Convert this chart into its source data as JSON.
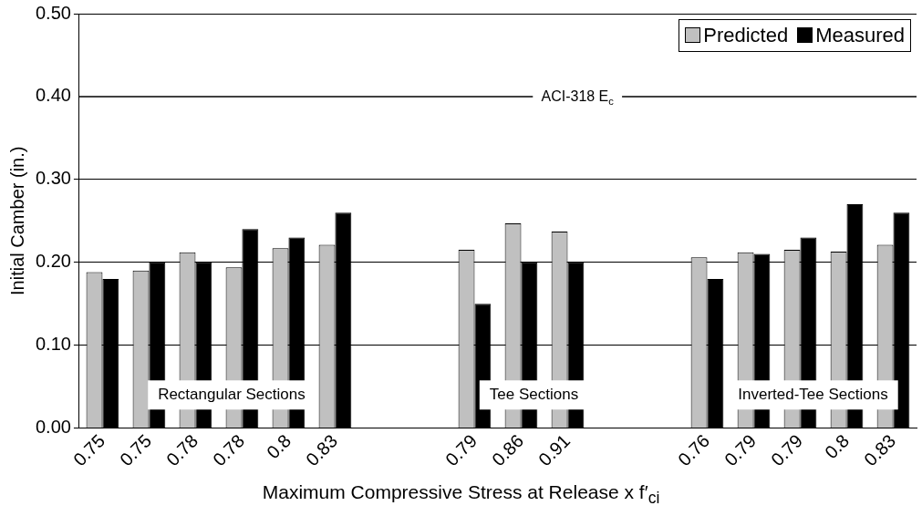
{
  "chart_data": {
    "type": "bar",
    "xlabel": "Maximum Compressive Stress at Release x f′$_{ci}$",
    "ylabel": "Initial Camber (in.)",
    "categories": [
      "0.75",
      "0.75",
      "0.78",
      "0.78",
      "0.8",
      "0.83",
      null,
      null,
      "0.79",
      "0.86",
      "0.91",
      null,
      null,
      "0.76",
      "0.79",
      "0.79",
      "0.8",
      "0.83"
    ],
    "series": [
      {
        "name": "Predicted",
        "color": "#c0c0c0",
        "values": [
          0.188,
          0.19,
          0.212,
          0.194,
          0.217,
          0.221,
          null,
          null,
          0.215,
          0.247,
          0.237,
          null,
          null,
          0.206,
          0.212,
          0.215,
          0.213,
          0.221
        ]
      },
      {
        "name": "Measured",
        "color": "#000000",
        "values": [
          0.18,
          0.2,
          0.2,
          0.24,
          0.23,
          0.26,
          null,
          null,
          0.15,
          0.2,
          0.2,
          null,
          null,
          0.18,
          0.21,
          0.23,
          0.27,
          0.26
        ]
      }
    ],
    "ylim": [
      0,
      0.5
    ],
    "yticks": [
      {
        "value": 0,
        "label": "0.00"
      },
      {
        "value": 0.1,
        "label": "0.10"
      },
      {
        "value": 0.2,
        "label": "0.20"
      },
      {
        "value": 0.3,
        "label": "0.30"
      },
      {
        "value": 0.4,
        "label": "0.40"
      },
      {
        "value": 0.5,
        "label": "0.50"
      }
    ],
    "ref_lines": [
      {
        "axis": "y",
        "value": 0.4,
        "label": "ACI-318 E$_{c}$",
        "color": "#000000"
      }
    ],
    "annotations": [
      "Rectangular Sections",
      "Tee Sections",
      "Inverted-Tee Sections"
    ],
    "grid": "y",
    "legend": "top right"
  }
}
